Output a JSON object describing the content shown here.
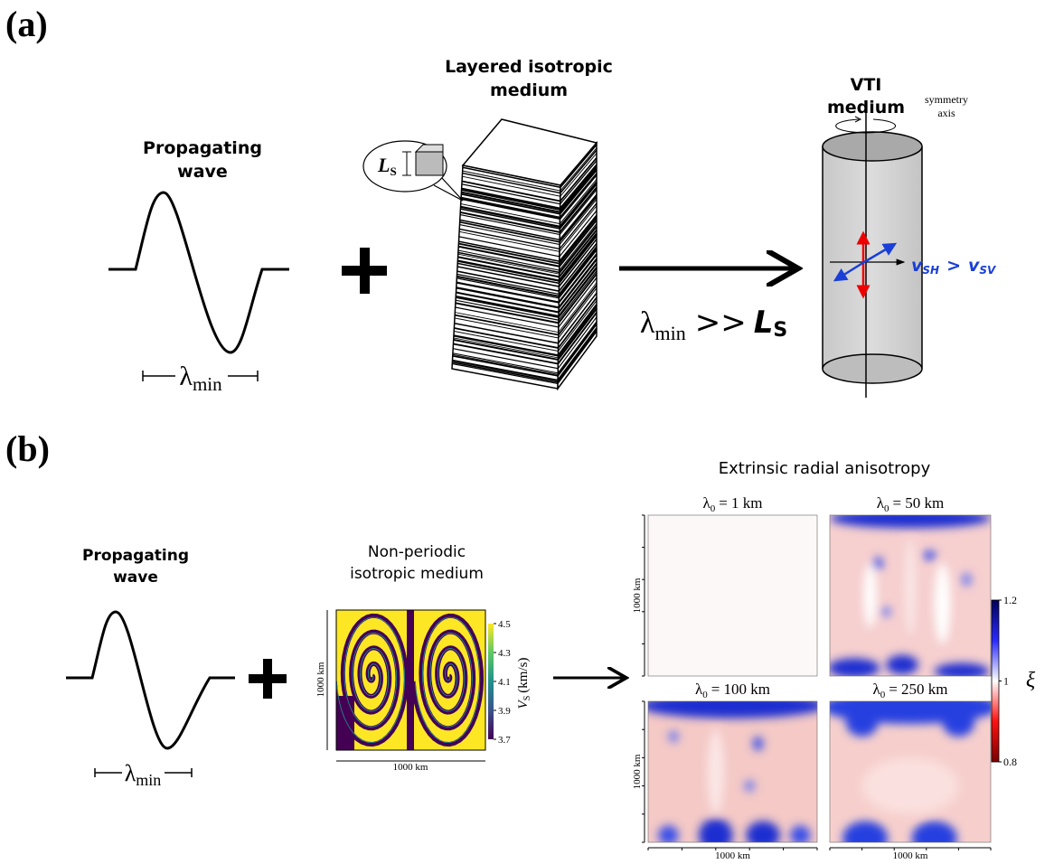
{
  "panel_a": {
    "label": "(a)",
    "wave_title": [
      "Propagating",
      "wave"
    ],
    "wavelength": [
      "λ",
      "min"
    ],
    "layered_title": [
      "Layered isotropic",
      "medium"
    ],
    "layer_thickness": [
      "L",
      "S"
    ],
    "condition": [
      "λ",
      "min",
      ">>",
      "L",
      "S"
    ],
    "vti_title": [
      "VTI",
      "medium"
    ],
    "symmetry_axis": [
      "symmetry",
      "axis"
    ],
    "velocities": [
      "v",
      "SH",
      ">",
      "v",
      "SV"
    ]
  },
  "panel_b": {
    "label": "(b)",
    "wave_title": [
      "Propagating",
      "wave"
    ],
    "wavelength": [
      "λ",
      "min"
    ],
    "medium_title": [
      "Non-periodic",
      "isotropic medium"
    ],
    "medium_axes": {
      "x": "1000 km",
      "y": "1000 km"
    },
    "vs_colorbar": {
      "ticks": [
        "4.5",
        "4.3",
        "4.1",
        "3.9",
        "3.7"
      ],
      "label": [
        "V",
        "S",
        "(km/s)"
      ]
    },
    "anisotropy_title": "Extrinsic radial anisotropy",
    "maps": [
      {
        "title": [
          "λ",
          "0",
          "= 1 km"
        ],
        "y_label": "1000 km"
      },
      {
        "title": [
          "λ",
          "0",
          "= 50 km"
        ]
      },
      {
        "title": [
          "λ",
          "0",
          "= 100 km"
        ],
        "y_label": "1000 km",
        "x_label": "1000 km"
      },
      {
        "title": [
          "λ",
          "0",
          "= 250 km"
        ],
        "x_label": "1000 km"
      }
    ],
    "xi_colorbar": {
      "ticks": [
        "1.2",
        "1",
        "0.8"
      ],
      "label": "ξ"
    }
  }
}
